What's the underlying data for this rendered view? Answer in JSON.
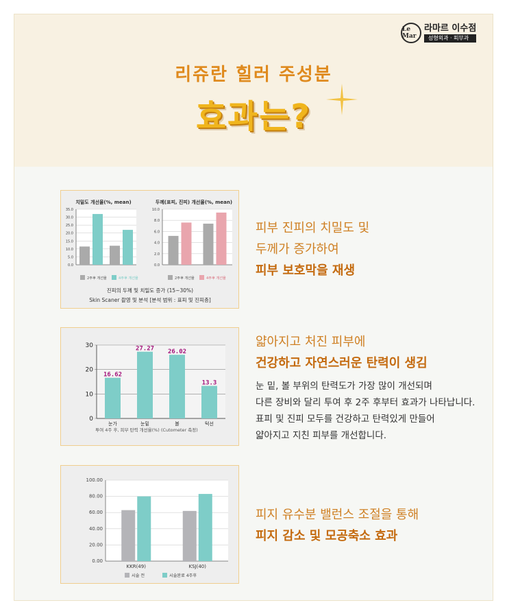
{
  "brand": {
    "logo_mark": "Le Mar",
    "name": "라마르 이수점",
    "sub": "성형외과 · 피부과"
  },
  "header": {
    "subtitle": "리쥬란 힐러 주성분",
    "title": "효과는?"
  },
  "colors": {
    "gray_bar": "#aaaaaa",
    "teal_bar": "#7ecdc8",
    "pink_bar": "#e9a5ad",
    "magenta_label": "#a4167c",
    "accent_orange": "#df8a1e"
  },
  "sections": [
    {
      "lines": [
        "피부 진피의 치밀도 및",
        "두께가 증가하여"
      ],
      "highlight": "피부 보호막을 재생",
      "description": []
    },
    {
      "lines": [
        "얇아지고 처진 피부에"
      ],
      "highlight": "건강하고 자연스러운 탄력이 생김",
      "description": [
        "눈 밑, 볼 부위의 탄력도가 가장 많이 개선되며",
        "다른 장비와 달리 투여 후 2주 후부터 효과가 나타납니다.",
        "표피 및 진피 모두를 건강하고 탄력있게 만들어",
        "얇아지고 지친 피부를 개선합니다."
      ]
    },
    {
      "lines": [
        "피지 유수분 밸런스 조절을 통해"
      ],
      "highlight": "피지 감소 및 모공축소 효과",
      "description": []
    }
  ],
  "chart_data": [
    {
      "type": "bar",
      "title": "치밀도 개선율(%, mean)",
      "categories": [
        "",
        ""
      ],
      "series": [
        {
          "name": "2주후 개선율",
          "values": [
            11.5,
            12.0
          ],
          "color": "#aaaaaa"
        },
        {
          "name": "4주후 개선율",
          "values": [
            32.0,
            22.0
          ],
          "color": "#7ecdc8"
        }
      ],
      "ylim": [
        0,
        35
      ],
      "yticks": [
        "35.0",
        "30.0",
        "25.0",
        "20.0",
        "15.0",
        "10.0",
        "5.0",
        "0.0"
      ],
      "grid": true,
      "legend": "bottom"
    },
    {
      "type": "bar",
      "title": "두께(표피, 진피) 개선율(%, mean)",
      "categories": [
        "",
        ""
      ],
      "series": [
        {
          "name": "2주후 개선율",
          "values": [
            5.2,
            7.4
          ],
          "color": "#aaaaaa"
        },
        {
          "name": "4주후 개선율",
          "values": [
            7.6,
            9.4
          ],
          "color": "#e9a5ad"
        }
      ],
      "ylim": [
        0,
        10
      ],
      "yticks": [
        "10.0",
        "8.0",
        "6.0",
        "4.0",
        "2.0",
        "0.0"
      ],
      "grid": true,
      "legend": "bottom",
      "caption": [
        "진피의 두께 및 치밀도 증가 (15~30%)",
        "Skin Scaner 촬영 및 분석 [분석 범위 : 표피 및 진피층]"
      ]
    },
    {
      "type": "bar",
      "categories": [
        "눈가",
        "눈밑",
        "볼",
        "턱선"
      ],
      "values": [
        16.62,
        27.27,
        26.02,
        13.3
      ],
      "value_labels": [
        "16.62",
        "27.27",
        "26.02",
        "13.3"
      ],
      "ylim": [
        0,
        30
      ],
      "yticks": [
        "30",
        "20",
        "10",
        "0"
      ],
      "grid": true,
      "xlabel": "투여 4주 후, 피부 탄력 개선율(%) (Cutometer 측정)"
    },
    {
      "type": "bar",
      "categories": [
        "KKR(49)",
        "KSJ(40)"
      ],
      "series": [
        {
          "name": "시술 전",
          "values": [
            63,
            62
          ],
          "color": "#b4b4b8"
        },
        {
          "name": "시술완료 4주후",
          "values": [
            80,
            83
          ],
          "color": "#7ecdc8"
        }
      ],
      "ylim": [
        0,
        100
      ],
      "yticks": [
        "100.00",
        "80.00",
        "60.00",
        "40.00",
        "20.00",
        "0.00"
      ],
      "grid": true,
      "legend": "bottom"
    }
  ]
}
